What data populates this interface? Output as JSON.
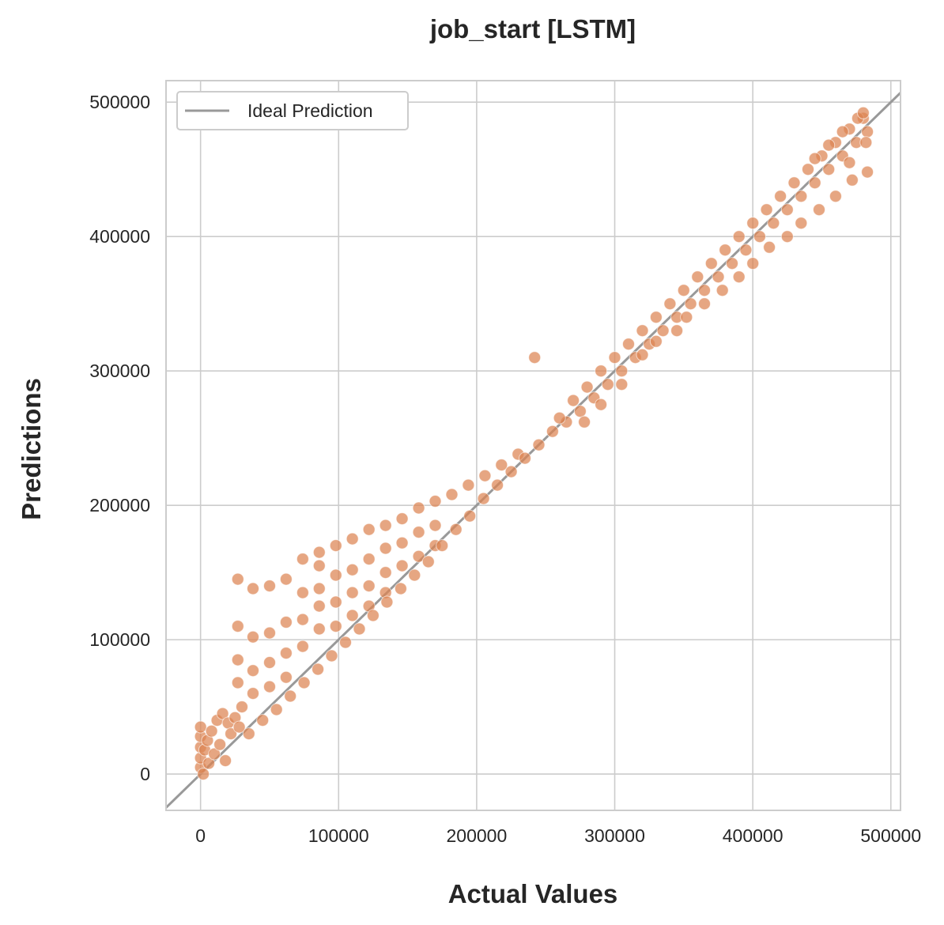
{
  "colors": {
    "point": "#dd8452",
    "ideal_line": "#999999",
    "grid": "#cccccc",
    "spine": "#cccccc",
    "text": "#262626"
  },
  "chart_data": {
    "type": "scatter",
    "title": "job_start [LSTM]",
    "xlabel": "Actual Values",
    "ylabel": "Predictions",
    "xlim": [
      -25000,
      507000
    ],
    "ylim": [
      -27000,
      516000
    ],
    "xticks": [
      0,
      100000,
      200000,
      300000,
      400000,
      500000
    ],
    "yticks": [
      0,
      100000,
      200000,
      300000,
      400000,
      500000
    ],
    "xtick_labels": [
      "0",
      "100000",
      "200000",
      "300000",
      "400000",
      "500000"
    ],
    "ytick_labels": [
      "0",
      "100000",
      "200000",
      "300000",
      "400000",
      "500000"
    ],
    "grid": true,
    "legend": {
      "position": "top-left",
      "entries": [
        "Ideal Prediction"
      ]
    },
    "ideal_line": {
      "name": "Ideal Prediction",
      "x": [
        -25000,
        507000
      ],
      "y": [
        -25000,
        507000
      ]
    },
    "series": [
      {
        "name": "",
        "color": "#dd8452",
        "points": [
          [
            0,
            5000
          ],
          [
            0,
            12000
          ],
          [
            0,
            20000
          ],
          [
            0,
            28000
          ],
          [
            0,
            35000
          ],
          [
            2000,
            0
          ],
          [
            3000,
            18000
          ],
          [
            5000,
            25000
          ],
          [
            6000,
            8000
          ],
          [
            8000,
            32000
          ],
          [
            10000,
            15000
          ],
          [
            12000,
            40000
          ],
          [
            14000,
            22000
          ],
          [
            16000,
            45000
          ],
          [
            18000,
            10000
          ],
          [
            20000,
            38000
          ],
          [
            22000,
            30000
          ],
          [
            25000,
            42000
          ],
          [
            28000,
            35000
          ],
          [
            30000,
            50000
          ],
          [
            27000,
            145000
          ],
          [
            38000,
            138000
          ],
          [
            50000,
            140000
          ],
          [
            62000,
            145000
          ],
          [
            27000,
            110000
          ],
          [
            38000,
            102000
          ],
          [
            50000,
            105000
          ],
          [
            62000,
            113000
          ],
          [
            27000,
            85000
          ],
          [
            38000,
            77000
          ],
          [
            50000,
            83000
          ],
          [
            62000,
            90000
          ],
          [
            27000,
            68000
          ],
          [
            38000,
            60000
          ],
          [
            50000,
            65000
          ],
          [
            62000,
            72000
          ],
          [
            74000,
            160000
          ],
          [
            74000,
            135000
          ],
          [
            74000,
            115000
          ],
          [
            74000,
            95000
          ],
          [
            86000,
            165000
          ],
          [
            86000,
            155000
          ],
          [
            86000,
            138000
          ],
          [
            86000,
            125000
          ],
          [
            86000,
            108000
          ],
          [
            98000,
            170000
          ],
          [
            98000,
            148000
          ],
          [
            98000,
            128000
          ],
          [
            98000,
            110000
          ],
          [
            110000,
            175000
          ],
          [
            110000,
            152000
          ],
          [
            110000,
            135000
          ],
          [
            110000,
            118000
          ],
          [
            122000,
            182000
          ],
          [
            122000,
            160000
          ],
          [
            122000,
            140000
          ],
          [
            122000,
            125000
          ],
          [
            134000,
            185000
          ],
          [
            134000,
            168000
          ],
          [
            134000,
            150000
          ],
          [
            134000,
            135000
          ],
          [
            146000,
            190000
          ],
          [
            146000,
            172000
          ],
          [
            146000,
            155000
          ],
          [
            158000,
            198000
          ],
          [
            158000,
            180000
          ],
          [
            158000,
            162000
          ],
          [
            170000,
            203000
          ],
          [
            170000,
            185000
          ],
          [
            170000,
            170000
          ],
          [
            182000,
            208000
          ],
          [
            194000,
            215000
          ],
          [
            206000,
            222000
          ],
          [
            218000,
            230000
          ],
          [
            230000,
            238000
          ],
          [
            35000,
            30000
          ],
          [
            45000,
            40000
          ],
          [
            55000,
            48000
          ],
          [
            65000,
            58000
          ],
          [
            75000,
            68000
          ],
          [
            85000,
            78000
          ],
          [
            95000,
            88000
          ],
          [
            105000,
            98000
          ],
          [
            115000,
            108000
          ],
          [
            125000,
            118000
          ],
          [
            135000,
            128000
          ],
          [
            145000,
            138000
          ],
          [
            155000,
            148000
          ],
          [
            165000,
            158000
          ],
          [
            175000,
            170000
          ],
          [
            185000,
            182000
          ],
          [
            195000,
            192000
          ],
          [
            205000,
            205000
          ],
          [
            215000,
            215000
          ],
          [
            225000,
            225000
          ],
          [
            235000,
            235000
          ],
          [
            242000,
            310000
          ],
          [
            245000,
            245000
          ],
          [
            255000,
            255000
          ],
          [
            265000,
            262000
          ],
          [
            275000,
            270000
          ],
          [
            285000,
            280000
          ],
          [
            295000,
            290000
          ],
          [
            305000,
            300000
          ],
          [
            315000,
            310000
          ],
          [
            325000,
            320000
          ],
          [
            335000,
            330000
          ],
          [
            345000,
            340000
          ],
          [
            355000,
            350000
          ],
          [
            365000,
            360000
          ],
          [
            375000,
            370000
          ],
          [
            385000,
            380000
          ],
          [
            395000,
            390000
          ],
          [
            405000,
            400000
          ],
          [
            415000,
            410000
          ],
          [
            425000,
            420000
          ],
          [
            435000,
            430000
          ],
          [
            445000,
            440000
          ],
          [
            455000,
            450000
          ],
          [
            465000,
            460000
          ],
          [
            475000,
            470000
          ],
          [
            483000,
            478000
          ],
          [
            260000,
            265000
          ],
          [
            270000,
            278000
          ],
          [
            280000,
            288000
          ],
          [
            290000,
            300000
          ],
          [
            300000,
            310000
          ],
          [
            310000,
            320000
          ],
          [
            320000,
            330000
          ],
          [
            330000,
            340000
          ],
          [
            340000,
            350000
          ],
          [
            350000,
            360000
          ],
          [
            360000,
            370000
          ],
          [
            370000,
            380000
          ],
          [
            380000,
            390000
          ],
          [
            390000,
            400000
          ],
          [
            400000,
            410000
          ],
          [
            410000,
            420000
          ],
          [
            420000,
            430000
          ],
          [
            430000,
            440000
          ],
          [
            440000,
            450000
          ],
          [
            450000,
            460000
          ],
          [
            460000,
            470000
          ],
          [
            470000,
            480000
          ],
          [
            480000,
            488000
          ],
          [
            278000,
            262000
          ],
          [
            290000,
            275000
          ],
          [
            305000,
            290000
          ],
          [
            320000,
            312000
          ],
          [
            330000,
            322000
          ],
          [
            345000,
            330000
          ],
          [
            352000,
            340000
          ],
          [
            365000,
            350000
          ],
          [
            378000,
            360000
          ],
          [
            390000,
            370000
          ],
          [
            400000,
            380000
          ],
          [
            412000,
            392000
          ],
          [
            425000,
            400000
          ],
          [
            435000,
            410000
          ],
          [
            448000,
            420000
          ],
          [
            460000,
            430000
          ],
          [
            472000,
            442000
          ],
          [
            483000,
            448000
          ],
          [
            470000,
            455000
          ],
          [
            482000,
            470000
          ],
          [
            476000,
            488000
          ],
          [
            480000,
            492000
          ],
          [
            465000,
            478000
          ],
          [
            455000,
            468000
          ],
          [
            445000,
            458000
          ]
        ]
      }
    ]
  }
}
